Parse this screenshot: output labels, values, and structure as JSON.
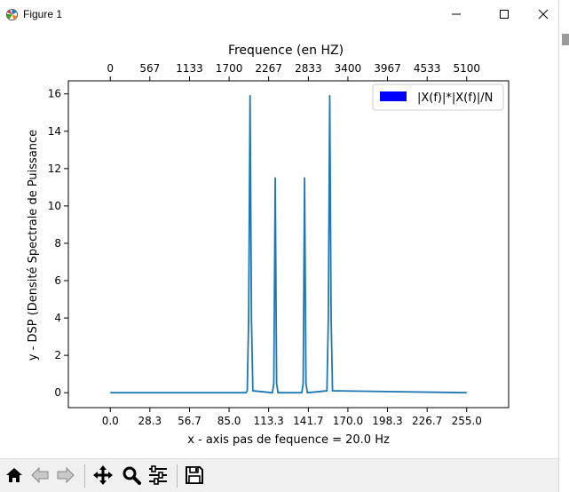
{
  "window": {
    "title": "Figure 1",
    "controls": {
      "minimize": "minimize-icon",
      "maximize": "maximize-icon",
      "close": "close-icon"
    }
  },
  "toolbar": {
    "tools": [
      {
        "name": "home-button",
        "icon": "home-icon"
      },
      {
        "name": "back-button",
        "icon": "back-arrow-icon"
      },
      {
        "name": "forward-button",
        "icon": "forward-arrow-icon"
      },
      {
        "name": "pan-button",
        "icon": "move-icon"
      },
      {
        "name": "zoom-button",
        "icon": "magnifier-icon"
      },
      {
        "name": "configure-subplots-button",
        "icon": "sliders-icon"
      },
      {
        "name": "save-button",
        "icon": "floppy-disk-icon"
      }
    ]
  },
  "chart_data": {
    "type": "line",
    "title": "",
    "xlabel": "x - axis pas de fequence = 20.0 Hz",
    "ylabel": "y - DSP (Densité Spectrale de Puissance",
    "top_xlabel": "Frequence (en HZ)",
    "xlim": [
      -30,
      285
    ],
    "ylim": [
      -0.8,
      16.7
    ],
    "xticks": [
      0,
      28.3,
      56.7,
      85.0,
      113.3,
      141.7,
      170.0,
      198.3,
      226.7,
      255.0
    ],
    "xtick_labels": [
      "0.0",
      "28.3",
      "56.7",
      "85.0",
      "113.3",
      "141.7",
      "170.0",
      "198.3",
      "226.7",
      "255.0"
    ],
    "yticks": [
      0,
      2,
      4,
      6,
      8,
      10,
      12,
      14,
      16
    ],
    "ytick_labels": [
      "0",
      "2",
      "4",
      "6",
      "8",
      "10",
      "12",
      "14",
      "16"
    ],
    "top_xticks": [
      0,
      28.3,
      56.7,
      85.0,
      113.3,
      141.7,
      170.0,
      198.3,
      226.7,
      255.0
    ],
    "top_xtick_labels": [
      "0",
      "567",
      "1133",
      "1700",
      "2267",
      "2833",
      "3400",
      "3967",
      "4533",
      "5100"
    ],
    "grid": false,
    "legend": {
      "placement": "top-right",
      "entries": [
        "|X(f)|*|X(f)|/N"
      ],
      "swatch_color": "#0000ff"
    },
    "series": [
      {
        "name": "|X(f)|*|X(f)|/N",
        "color": "#1f77b4",
        "x": [
          0,
          97,
          98,
          99,
          100,
          101,
          102,
          116,
          117,
          118,
          119,
          120,
          137,
          138,
          139,
          140,
          141,
          155,
          156,
          157,
          158,
          159,
          255
        ],
        "y": [
          0,
          0,
          0.1,
          4.0,
          15.9,
          4.0,
          0.1,
          0,
          0.5,
          11.5,
          0.5,
          0,
          0,
          0.5,
          11.5,
          0.5,
          0,
          0.1,
          4.0,
          15.9,
          4.0,
          0.1,
          0
        ]
      }
    ]
  }
}
